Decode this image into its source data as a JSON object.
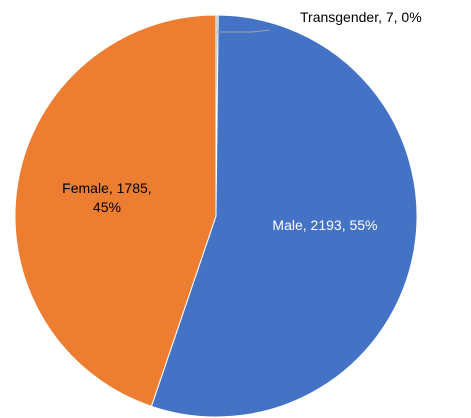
{
  "chart_data": {
    "type": "pie",
    "categories": [
      "Transgender",
      "Male",
      "Female"
    ],
    "values": [
      7,
      2193,
      1785
    ],
    "value_labels": [
      "Transgender, 7, 0%",
      "Male, 2193, 55%",
      "Female, 1785, 45%"
    ],
    "colors": [
      "#a5a5a5",
      "#4472c4",
      "#ed7d31"
    ]
  }
}
